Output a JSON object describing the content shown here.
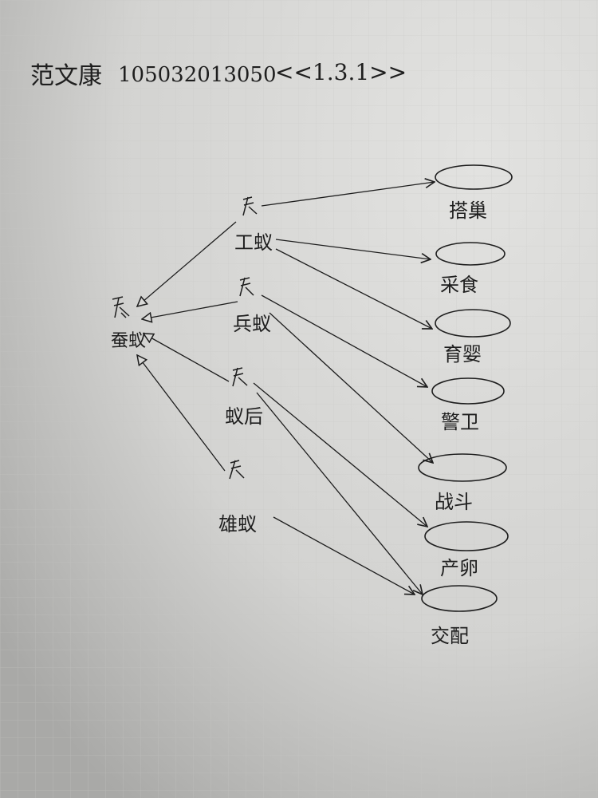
{
  "header": {
    "name": "范文康",
    "student_id": "105032013050",
    "section": "<<1.3.1>>"
  },
  "actors": {
    "generic": "蚕蚁",
    "worker": "工蚁",
    "soldier": "兵蚁",
    "queen": "蚁后",
    "male": "雄蚁"
  },
  "use_cases": {
    "build_nest": "搭巢",
    "forage": "采食",
    "nurse": "育婴",
    "guard": "警卫",
    "fight": "战斗",
    "lay_eggs": "产卵",
    "mate": "交配"
  },
  "colors": {
    "ink": "#1e1e1e",
    "paper": "#d9d9d7",
    "grid": "#c7c7c5"
  }
}
